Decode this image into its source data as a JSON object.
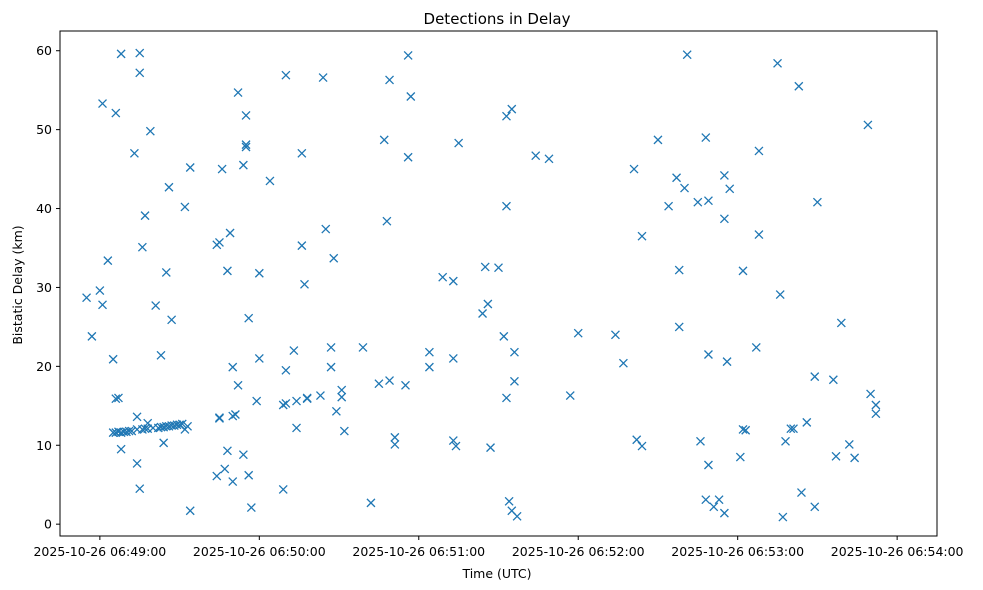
{
  "chart_data": {
    "type": "scatter",
    "title": "Detections in Delay",
    "xlabel": "Time (UTC)",
    "ylabel": "Bistatic Delay (km)",
    "x_unit": "time",
    "x_tick_labels": [
      "2025-10-26 06:49:00",
      "2025-10-26 06:50:00",
      "2025-10-26 06:51:00",
      "2025-10-26 06:52:00",
      "2025-10-26 06:53:00",
      "2025-10-26 06:54:00"
    ],
    "x_range": [
      "2025-10-26 06:48:45",
      "2025-10-26 06:54:15"
    ],
    "y_ticks": [
      0,
      10,
      20,
      30,
      40,
      50,
      60
    ],
    "ylim": [
      -1.5,
      62.5
    ],
    "grid": false,
    "marker": "x",
    "color": "#1f77b4",
    "points": [
      [
        "06:48:55",
        28.7
      ],
      [
        "06:48:57",
        23.8
      ],
      [
        "06:49:00",
        29.6
      ],
      [
        "06:49:01",
        27.8
      ],
      [
        "06:49:01",
        53.3
      ],
      [
        "06:49:03",
        33.4
      ],
      [
        "06:49:05",
        11.6
      ],
      [
        "06:49:05",
        20.9
      ],
      [
        "06:49:06",
        11.6
      ],
      [
        "06:49:06",
        15.9
      ],
      [
        "06:49:07",
        11.7
      ],
      [
        "06:49:07",
        16.0
      ],
      [
        "06:49:06",
        52.1
      ],
      [
        "06:49:08",
        11.6
      ],
      [
        "06:49:08",
        9.5
      ],
      [
        "06:49:08",
        59.6
      ],
      [
        "06:49:09",
        11.7
      ],
      [
        "06:49:10",
        11.7
      ],
      [
        "06:49:11",
        11.8
      ],
      [
        "06:49:12",
        11.8
      ],
      [
        "06:49:13",
        47.0
      ],
      [
        "06:49:14",
        12.0
      ],
      [
        "06:49:14",
        13.6
      ],
      [
        "06:49:14",
        7.7
      ],
      [
        "06:49:15",
        4.5
      ],
      [
        "06:49:15",
        59.7
      ],
      [
        "06:49:15",
        57.2
      ],
      [
        "06:49:16",
        12.0
      ],
      [
        "06:49:16",
        35.1
      ],
      [
        "06:49:17",
        12.1
      ],
      [
        "06:49:17",
        39.1
      ],
      [
        "06:49:18",
        12.1
      ],
      [
        "06:49:18",
        12.8
      ],
      [
        "06:49:19",
        49.8
      ],
      [
        "06:49:20",
        12.2
      ],
      [
        "06:49:21",
        27.7
      ],
      [
        "06:49:22",
        12.2
      ],
      [
        "06:49:23",
        12.3
      ],
      [
        "06:49:23",
        21.4
      ],
      [
        "06:49:24",
        10.3
      ],
      [
        "06:49:24",
        12.3
      ],
      [
        "06:49:25",
        12.4
      ],
      [
        "06:49:25",
        31.9
      ],
      [
        "06:49:26",
        12.4
      ],
      [
        "06:49:26",
        42.7
      ],
      [
        "06:49:27",
        12.5
      ],
      [
        "06:49:27",
        25.9
      ],
      [
        "06:49:28",
        12.5
      ],
      [
        "06:49:29",
        12.6
      ],
      [
        "06:49:30",
        12.6
      ],
      [
        "06:49:31",
        12.7
      ],
      [
        "06:49:32",
        12.0
      ],
      [
        "06:49:32",
        40.2
      ],
      [
        "06:49:33",
        12.4
      ],
      [
        "06:49:34",
        45.2
      ],
      [
        "06:49:34",
        1.7
      ],
      [
        "06:49:44",
        6.1
      ],
      [
        "06:49:44",
        35.4
      ],
      [
        "06:49:45",
        13.4
      ],
      [
        "06:49:45",
        13.5
      ],
      [
        "06:49:45",
        35.7
      ],
      [
        "06:49:46",
        45.0
      ],
      [
        "06:49:47",
        7.0
      ],
      [
        "06:49:48",
        9.3
      ],
      [
        "06:49:48",
        32.1
      ],
      [
        "06:49:49",
        36.9
      ],
      [
        "06:49:50",
        13.7
      ],
      [
        "06:49:50",
        19.9
      ],
      [
        "06:49:50",
        5.4
      ],
      [
        "06:49:51",
        13.9
      ],
      [
        "06:49:52",
        17.6
      ],
      [
        "06:49:52",
        54.7
      ],
      [
        "06:49:54",
        8.8
      ],
      [
        "06:49:54",
        45.5
      ],
      [
        "06:49:55",
        51.8
      ],
      [
        "06:49:55",
        48.1
      ],
      [
        "06:49:55",
        47.8
      ],
      [
        "06:49:56",
        26.1
      ],
      [
        "06:49:56",
        6.2
      ],
      [
        "06:49:57",
        2.1
      ],
      [
        "06:49:59",
        15.6
      ],
      [
        "06:50:00",
        21.0
      ],
      [
        "06:50:00",
        31.8
      ],
      [
        "06:50:04",
        43.5
      ],
      [
        "06:50:09",
        15.1
      ],
      [
        "06:50:09",
        4.4
      ],
      [
        "06:50:10",
        15.3
      ],
      [
        "06:50:10",
        19.5
      ],
      [
        "06:50:10",
        56.9
      ],
      [
        "06:50:13",
        22.0
      ],
      [
        "06:50:14",
        15.6
      ],
      [
        "06:50:14",
        12.2
      ],
      [
        "06:50:16",
        35.3
      ],
      [
        "06:50:16",
        47.0
      ],
      [
        "06:50:17",
        30.4
      ],
      [
        "06:50:18",
        15.9
      ],
      [
        "06:50:18",
        16.0
      ],
      [
        "06:50:23",
        16.3
      ],
      [
        "06:50:24",
        56.6
      ],
      [
        "06:50:25",
        37.4
      ],
      [
        "06:50:27",
        19.9
      ],
      [
        "06:50:27",
        22.4
      ],
      [
        "06:50:28",
        33.7
      ],
      [
        "06:50:29",
        14.3
      ],
      [
        "06:50:31",
        16.1
      ],
      [
        "06:50:31",
        17.0
      ],
      [
        "06:50:32",
        11.8
      ],
      [
        "06:50:39",
        22.4
      ],
      [
        "06:50:42",
        2.7
      ],
      [
        "06:50:45",
        17.8
      ],
      [
        "06:50:47",
        48.7
      ],
      [
        "06:50:48",
        38.4
      ],
      [
        "06:50:49",
        56.3
      ],
      [
        "06:50:49",
        18.2
      ],
      [
        "06:50:51",
        11.0
      ],
      [
        "06:50:51",
        10.1
      ],
      [
        "06:50:55",
        17.6
      ],
      [
        "06:50:56",
        59.4
      ],
      [
        "06:50:56",
        46.5
      ],
      [
        "06:50:57",
        54.2
      ],
      [
        "06:51:04",
        21.8
      ],
      [
        "06:51:04",
        19.9
      ],
      [
        "06:51:09",
        31.3
      ],
      [
        "06:51:13",
        30.8
      ],
      [
        "06:51:13",
        21.0
      ],
      [
        "06:51:13",
        10.6
      ],
      [
        "06:51:14",
        9.9
      ],
      [
        "06:51:15",
        48.3
      ],
      [
        "06:51:24",
        26.7
      ],
      [
        "06:51:25",
        32.6
      ],
      [
        "06:51:26",
        27.9
      ],
      [
        "06:51:27",
        9.7
      ],
      [
        "06:51:30",
        32.5
      ],
      [
        "06:51:32",
        23.8
      ],
      [
        "06:51:33",
        16.0
      ],
      [
        "06:51:33",
        40.3
      ],
      [
        "06:51:33",
        51.7
      ],
      [
        "06:51:34",
        2.9
      ],
      [
        "06:51:35",
        52.6
      ],
      [
        "06:51:35",
        1.7
      ],
      [
        "06:51:36",
        21.8
      ],
      [
        "06:51:36",
        18.1
      ],
      [
        "06:51:37",
        1.0
      ],
      [
        "06:51:44",
        46.7
      ],
      [
        "06:51:49",
        46.3
      ],
      [
        "06:51:57",
        16.3
      ],
      [
        "06:52:00",
        24.2
      ],
      [
        "06:52:14",
        24.0
      ],
      [
        "06:52:17",
        20.4
      ],
      [
        "06:52:21",
        45.0
      ],
      [
        "06:52:22",
        10.7
      ],
      [
        "06:52:24",
        9.9
      ],
      [
        "06:52:24",
        36.5
      ],
      [
        "06:52:30",
        48.7
      ],
      [
        "06:52:34",
        40.3
      ],
      [
        "06:52:37",
        43.9
      ],
      [
        "06:52:38",
        32.2
      ],
      [
        "06:52:38",
        25.0
      ],
      [
        "06:52:40",
        42.6
      ],
      [
        "06:52:41",
        59.5
      ],
      [
        "06:52:45",
        40.8
      ],
      [
        "06:52:46",
        10.5
      ],
      [
        "06:52:48",
        3.1
      ],
      [
        "06:52:48",
        49.0
      ],
      [
        "06:52:49",
        41.0
      ],
      [
        "06:52:49",
        21.5
      ],
      [
        "06:52:49",
        7.5
      ],
      [
        "06:52:51",
        2.2
      ],
      [
        "06:52:53",
        3.1
      ],
      [
        "06:52:55",
        1.4
      ],
      [
        "06:52:55",
        44.2
      ],
      [
        "06:52:55",
        38.7
      ],
      [
        "06:52:56",
        20.6
      ],
      [
        "06:52:57",
        42.5
      ],
      [
        "06:53:01",
        8.5
      ],
      [
        "06:53:02",
        12.0
      ],
      [
        "06:53:02",
        32.1
      ],
      [
        "06:53:03",
        11.9
      ],
      [
        "06:53:07",
        22.4
      ],
      [
        "06:53:08",
        47.3
      ],
      [
        "06:53:08",
        36.7
      ],
      [
        "06:53:15",
        58.4
      ],
      [
        "06:53:16",
        29.1
      ],
      [
        "06:53:17",
        0.9
      ],
      [
        "06:53:18",
        10.5
      ],
      [
        "06:53:20",
        12.1
      ],
      [
        "06:53:21",
        12.1
      ],
      [
        "06:53:23",
        55.5
      ],
      [
        "06:53:24",
        4.0
      ],
      [
        "06:53:26",
        12.9
      ],
      [
        "06:53:29",
        2.2
      ],
      [
        "06:53:29",
        18.7
      ],
      [
        "06:53:30",
        40.8
      ],
      [
        "06:53:36",
        18.3
      ],
      [
        "06:53:37",
        8.6
      ],
      [
        "06:53:39",
        25.5
      ],
      [
        "06:53:42",
        10.1
      ],
      [
        "06:53:44",
        8.4
      ],
      [
        "06:53:49",
        50.6
      ],
      [
        "06:53:50",
        16.5
      ],
      [
        "06:53:52",
        15.1
      ],
      [
        "06:53:52",
        14.0
      ]
    ]
  }
}
